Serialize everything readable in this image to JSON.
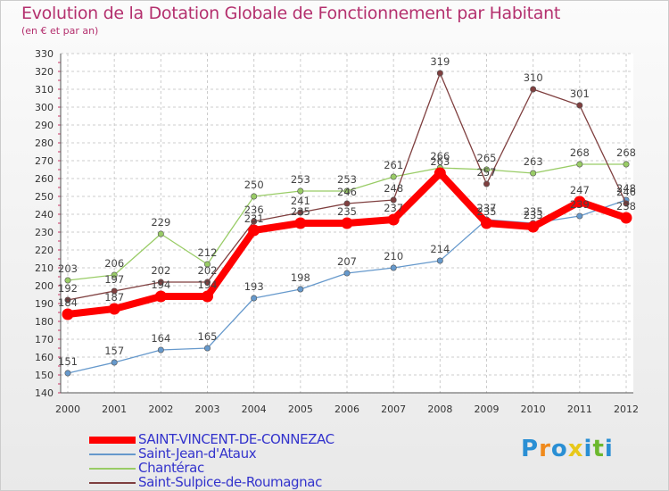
{
  "title": "Evolution de la Dotation Globale de Fonctionnement par Habitant",
  "subtitle": "(en € et par an)",
  "chart_data": {
    "type": "line",
    "title": "Evolution de la Dotation Globale de Fonctionnement par Habitant",
    "subtitle": "(en € et par an)",
    "xlabel": "",
    "ylabel": "",
    "ylim": [
      140,
      330
    ],
    "ytick_step": 10,
    "grid": true,
    "categories": [
      "2000",
      "2001",
      "2002",
      "2003",
      "2004",
      "2005",
      "2006",
      "2007",
      "2008",
      "2009",
      "2010",
      "2011",
      "2012"
    ],
    "series": [
      {
        "name": "SAINT-VINCENT-DE-CONNEZAC",
        "color": "#ff0000",
        "values": [
          184,
          187,
          194,
          194,
          231,
          235,
          235,
          237,
          263,
          235,
          233,
          247,
          238
        ]
      },
      {
        "name": "Saint-Jean-d'Ataux",
        "color": "#6699cc",
        "values": [
          151,
          157,
          164,
          165,
          193,
          198,
          207,
          210,
          214,
          237,
          235,
          239,
          248
        ]
      },
      {
        "name": "Chantérac",
        "color": "#99cc66",
        "values": [
          203,
          206,
          229,
          212,
          250,
          253,
          253,
          261,
          266,
          265,
          263,
          268,
          268
        ]
      },
      {
        "name": "Saint-Sulpice-de-Roumagnac",
        "color": "#7f3f3f",
        "values": [
          192,
          197,
          202,
          202,
          236,
          241,
          246,
          248,
          319,
          257,
          310,
          301,
          246
        ]
      }
    ]
  },
  "legend": {
    "items": [
      {
        "label": "SAINT-VINCENT-DE-CONNEZAC",
        "color": "#ff0000"
      },
      {
        "label": "Saint-Jean-d'Ataux",
        "color": "#6699cc"
      },
      {
        "label": "Chantérac",
        "color": "#99cc66"
      },
      {
        "label": "Saint-Sulpice-de-Roumagnac",
        "color": "#7f3f3f"
      }
    ]
  },
  "logo": {
    "letters": [
      "P",
      "r",
      "o",
      "x",
      "i",
      "t",
      "i"
    ],
    "colors": [
      "#2a8fd4",
      "#f08a1c",
      "#2a8fd4",
      "#e8c81a",
      "#2a8fd4",
      "#6cb82e",
      "#2a8fd4"
    ]
  }
}
